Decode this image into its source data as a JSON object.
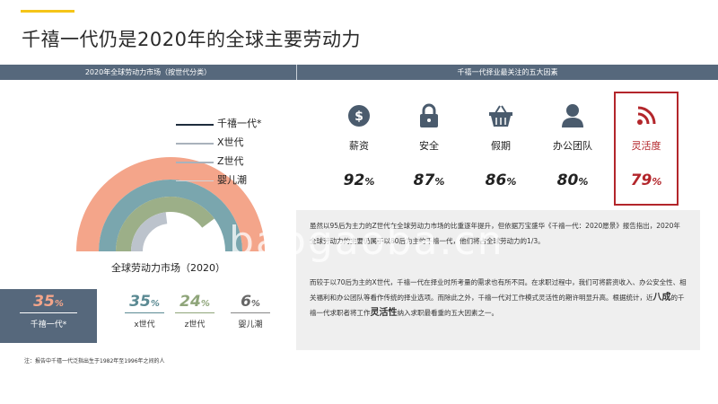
{
  "title": "千禧一代仍是2020年的全球主要劳动力",
  "header": {
    "left": "2020年全球劳动力市场（按世代分类）",
    "right": "千禧一代择业最关注的五大因素"
  },
  "colors": {
    "accent_line": "#f5c518",
    "header_bar": "#56687c",
    "millennial": "#f4a58a",
    "genx": "#7aa6ae",
    "genz": "#9caf88",
    "boomer": "#bcc3cc",
    "highlight": "#b3262b",
    "icon": "#4a5b6d"
  },
  "chart_data": {
    "type": "pie",
    "style": "nested semicircle rings",
    "title": "全球劳动力市场（2020）",
    "series": [
      {
        "name": "千禧一代*",
        "value": 35,
        "unit": "%",
        "color": "#f4a58a"
      },
      {
        "name": "X世代",
        "value": 35,
        "unit": "%",
        "color": "#7aa6ae"
      },
      {
        "name": "Z世代",
        "value": 24,
        "unit": "%",
        "color": "#9caf88"
      },
      {
        "name": "婴儿潮",
        "value": 6,
        "unit": "%",
        "color": "#bcc3cc"
      }
    ],
    "legend": [
      {
        "label": "千禧一代*"
      },
      {
        "label": "X世代"
      },
      {
        "label": "Z世代"
      },
      {
        "label": "婴儿潮"
      }
    ]
  },
  "stats": [
    {
      "value": "35",
      "unit": "%",
      "label": "千禧一代*"
    },
    {
      "value": "35",
      "unit": "%",
      "label": "x世代"
    },
    {
      "value": "24",
      "unit": "%",
      "label": "z世代"
    },
    {
      "value": "6",
      "unit": "%",
      "label": "婴儿潮"
    }
  ],
  "footnote": "注：报告中千禧一代泛指出生于1982年至1996年之间的人",
  "factors": [
    {
      "icon": "money-icon",
      "label": "薪资",
      "value": "92",
      "unit": "%"
    },
    {
      "icon": "lock-icon",
      "label": "安全",
      "value": "87",
      "unit": "%"
    },
    {
      "icon": "basket-icon",
      "label": "假期",
      "value": "86",
      "unit": "%"
    },
    {
      "icon": "person-icon",
      "label": "办公团队",
      "value": "80",
      "unit": "%"
    },
    {
      "icon": "rss-icon",
      "label": "灵活度",
      "value": "79",
      "unit": "%"
    }
  ],
  "paragraphs": {
    "p1": "虽然以95后为主力的Z世代在全球劳动力市场的比重逐年提升，但依据万宝盛华《千禧一代：2020愿景》报告指出，2020年全球劳动力的主要仍属于以80后为主的千禧一代，他们将占全球劳动力的1/3。",
    "p2_a": "而较于以70后为主的X世代，千禧一代在择业时所考量的需求也有所不同。在求职过程中，我们可将薪资收入、办公安全性、相关福利和办公团队等看作传统的择业选项。而除此之外，千禧一代对工作模式灵活性的期许明显升高。根据统计，近",
    "p2_big1": "八成",
    "p2_b": "的千禧一代求职者将工作",
    "p2_big2": "灵活性",
    "p2_c": "纳入求职最看重的五大因素之一。"
  },
  "watermark": "baogaoba.cn"
}
